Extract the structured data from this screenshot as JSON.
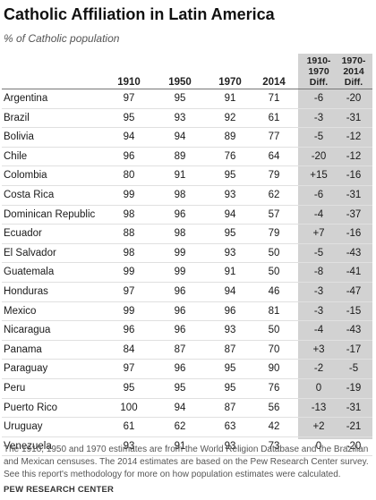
{
  "chart_data": {
    "type": "table",
    "title": "Catholic Affiliation in Latin America",
    "subtitle": "% of Catholic population",
    "year_headers": [
      "1910",
      "1950",
      "1970",
      "2014"
    ],
    "diff_headers": [
      {
        "line1": "1910-",
        "line2": "1970",
        "line3": "Diff."
      },
      {
        "line1": "1970-",
        "line2": "2014",
        "line3": "Diff."
      }
    ],
    "rows": [
      {
        "country": "Argentina",
        "y1910": "97",
        "y1950": "95",
        "y1970": "91",
        "y2014": "71",
        "d1": "-6",
        "d2": "-20"
      },
      {
        "country": "Brazil",
        "y1910": "95",
        "y1950": "93",
        "y1970": "92",
        "y2014": "61",
        "d1": "-3",
        "d2": "-31"
      },
      {
        "country": "Bolivia",
        "y1910": "94",
        "y1950": "94",
        "y1970": "89",
        "y2014": "77",
        "d1": "-5",
        "d2": "-12"
      },
      {
        "country": "Chile",
        "y1910": "96",
        "y1950": "89",
        "y1970": "76",
        "y2014": "64",
        "d1": "-20",
        "d2": "-12"
      },
      {
        "country": "Colombia",
        "y1910": "80",
        "y1950": "91",
        "y1970": "95",
        "y2014": "79",
        "d1": "+15",
        "d2": "-16"
      },
      {
        "country": "Costa Rica",
        "y1910": "99",
        "y1950": "98",
        "y1970": "93",
        "y2014": "62",
        "d1": "-6",
        "d2": "-31"
      },
      {
        "country": "Dominican Republic",
        "y1910": "98",
        "y1950": "96",
        "y1970": "94",
        "y2014": "57",
        "d1": "-4",
        "d2": "-37"
      },
      {
        "country": "Ecuador",
        "y1910": "88",
        "y1950": "98",
        "y1970": "95",
        "y2014": "79",
        "d1": "+7",
        "d2": "-16"
      },
      {
        "country": "El Salvador",
        "y1910": "98",
        "y1950": "99",
        "y1970": "93",
        "y2014": "50",
        "d1": "-5",
        "d2": "-43"
      },
      {
        "country": "Guatemala",
        "y1910": "99",
        "y1950": "99",
        "y1970": "91",
        "y2014": "50",
        "d1": "-8",
        "d2": "-41"
      },
      {
        "country": "Honduras",
        "y1910": "97",
        "y1950": "96",
        "y1970": "94",
        "y2014": "46",
        "d1": "-3",
        "d2": "-47"
      },
      {
        "country": "Mexico",
        "y1910": "99",
        "y1950": "96",
        "y1970": "96",
        "y2014": "81",
        "d1": "-3",
        "d2": "-15"
      },
      {
        "country": "Nicaragua",
        "y1910": "96",
        "y1950": "96",
        "y1970": "93",
        "y2014": "50",
        "d1": "-4",
        "d2": "-43"
      },
      {
        "country": "Panama",
        "y1910": "84",
        "y1950": "87",
        "y1970": "87",
        "y2014": "70",
        "d1": "+3",
        "d2": "-17"
      },
      {
        "country": "Paraguay",
        "y1910": "97",
        "y1950": "96",
        "y1970": "95",
        "y2014": "90",
        "d1": "-2",
        "d2": "-5"
      },
      {
        "country": "Peru",
        "y1910": "95",
        "y1950": "95",
        "y1970": "95",
        "y2014": "76",
        "d1": "0",
        "d2": "-19"
      },
      {
        "country": "Puerto Rico",
        "y1910": "100",
        "y1950": "94",
        "y1970": "87",
        "y2014": "56",
        "d1": "-13",
        "d2": "-31"
      },
      {
        "country": "Uruguay",
        "y1910": "61",
        "y1950": "62",
        "y1970": "63",
        "y2014": "42",
        "d1": "+2",
        "d2": "-21"
      },
      {
        "country": "Venezuela",
        "y1910": "93",
        "y1950": "91",
        "y1970": "93",
        "y2014": "73",
        "d1": "0",
        "d2": "-20"
      }
    ]
  },
  "note": "The 1910, 1950 and 1970 estimates are from the World Religion Database and the Brazilian and Mexican censuses. The 2014 estimates are based on the Pew Research Center survey. See this report's methodology for more on how population estimates were calculated.",
  "source": "PEW RESEARCH CENTER",
  "colors": {
    "diff_background": "#d2d2d2",
    "header_rule": "#777777",
    "row_rule": "#e0e0e0"
  }
}
